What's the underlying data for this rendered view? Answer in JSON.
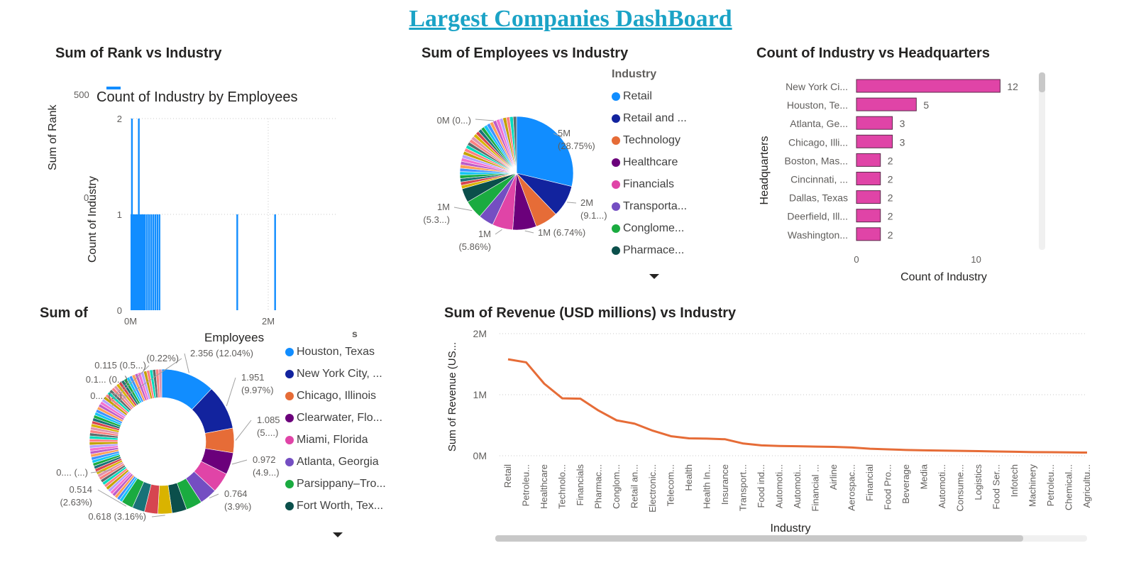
{
  "page_title": "Largest Companies DashBoard",
  "panels": {
    "rank": {
      "title": "Sum of Rank vs Industry",
      "ylabel": "Sum of Rank",
      "ticks": [
        "500",
        "0"
      ]
    },
    "popup": {
      "title": "Count of Industry by Employees",
      "ylabel": "Count of Industry",
      "xlabel": "Employees"
    },
    "pie": {
      "title": "Sum of Employees vs Industry",
      "legend_title": "Industry"
    },
    "bar": {
      "title": "Count of Industry vs Headquarters"
    },
    "donut": {
      "title_visible": "Sum of R",
      "legend_header_fragment": "s"
    },
    "line": {
      "title": "Sum of Revenue (USD millions) vs Industry"
    }
  },
  "chart_data": [
    {
      "type": "bar",
      "name": "count_by_employees",
      "title": "Count of Industry by Employees",
      "xlabel": "Employees",
      "ylabel": "Count of Industry",
      "x_ticks": [
        "0M",
        "2M"
      ],
      "y_ticks": [
        "0",
        "1",
        "2"
      ],
      "ylim": [
        0,
        2
      ],
      "xlim": [
        0,
        3000000
      ],
      "x": [
        20000,
        120000,
        40000,
        70000,
        95000,
        150000,
        180000,
        210000,
        240000,
        270000,
        300000,
        330000,
        360000,
        390000,
        420000,
        1550000,
        2100000
      ],
      "values": [
        2,
        2,
        1,
        1,
        1,
        1,
        1,
        1,
        1,
        1,
        1,
        1,
        1,
        1,
        1,
        1,
        1
      ],
      "color": "#118dff"
    },
    {
      "type": "pie",
      "name": "employees_by_industry",
      "title": "Sum of Employees vs Industry",
      "legend": [
        "Retail",
        "Retail and ...",
        "Technology",
        "Healthcare",
        "Financials",
        "Transporta...",
        "Conglome...",
        "Pharmace..."
      ],
      "legend_colors": [
        "#118dff",
        "#12239e",
        "#e66c37",
        "#6b007b",
        "#e044a7",
        "#744ec2",
        "#1aab40",
        "#0b4f4b"
      ],
      "slices": [
        {
          "label": "5M",
          "pct_label": "(28.75%)",
          "value": 28.75
        },
        {
          "label": "2M",
          "pct_label": "(9.1...)",
          "value": 9.1
        },
        {
          "label": "",
          "pct_label": "",
          "value": 6.5
        },
        {
          "label": "1M (6.74%)",
          "pct_label": "",
          "value": 6.74
        },
        {
          "label": "1M",
          "pct_label": "(5.86%)",
          "value": 5.86
        },
        {
          "label": "",
          "pct_label": "",
          "value": 4.3
        },
        {
          "label": "1M",
          "pct_label": "(5.3...)",
          "value": 5.3
        },
        {
          "label": "",
          "pct_label": "",
          "value": 4.0
        }
      ],
      "other_label": "0M (0...)"
    },
    {
      "type": "bar",
      "name": "count_by_headquarters",
      "title": "Count of Industry vs Headquarters",
      "orientation": "horizontal",
      "xlabel": "Count of Industry",
      "ylabel": "Headquarters",
      "categories": [
        "New York Ci...",
        "Houston, Te...",
        "Atlanta, Ge...",
        "Chicago, Illi...",
        "Boston, Mas...",
        "Cincinnati, ...",
        "Dallas, Texas",
        "Deerfield, Ill...",
        "Washington..."
      ],
      "values": [
        12,
        5,
        3,
        3,
        2,
        2,
        2,
        2,
        2
      ],
      "x_ticks": [
        "0",
        "10"
      ],
      "xlim": [
        0,
        12
      ],
      "color": "#e044a7"
    },
    {
      "type": "pie",
      "name": "donut_by_headquarters",
      "legend": [
        "Houston, Texas",
        "New York City, ...",
        "Chicago, Illinois",
        "Clearwater, Flo...",
        "Miami, Florida",
        "Atlanta, Georgia",
        "Parsippany–Tro...",
        "Fort Worth, Tex..."
      ],
      "legend_colors": [
        "#118dff",
        "#12239e",
        "#e66c37",
        "#6b007b",
        "#e044a7",
        "#744ec2",
        "#1aab40",
        "#0b4f4b"
      ],
      "slices": [
        {
          "label": "2.356 (12.04%)",
          "value": 12.04
        },
        {
          "label": "1.951 (9.97%)",
          "value": 9.97
        },
        {
          "label": "1.085 (5....)",
          "value": 5.5
        },
        {
          "label": "0.972 (4.9...)",
          "value": 4.9
        },
        {
          "label": "",
          "value": 4.5
        },
        {
          "label": "0.764 (3.9%)",
          "value": 3.9
        },
        {
          "label": "",
          "value": 3.6
        },
        {
          "label": "",
          "value": 3.3
        },
        {
          "label": "0.618 (3.16%)",
          "value": 3.16
        },
        {
          "label": "",
          "value": 3.0
        },
        {
          "label": "",
          "value": 2.8
        },
        {
          "label": "0.514 (2.63%)",
          "value": 2.63
        }
      ],
      "other_labels": [
        "0.... (...)",
        "0.... (...)",
        "0.1... (0...)",
        "0.115 (0.5...)",
        "(0.22%)"
      ]
    },
    {
      "type": "line",
      "name": "revenue_by_industry",
      "title": "Sum of Revenue (USD millions) vs Industry",
      "xlabel": "Industry",
      "ylabel": "Sum of Revenue (US...",
      "y_ticks": [
        "2M",
        "1M",
        "0M"
      ],
      "ylim": [
        0,
        2000000
      ],
      "categories": [
        "Retail",
        "Petroleu...",
        "Healthcare",
        "Technolo...",
        "Financials",
        "Pharmac...",
        "Conglom...",
        "Retail an...",
        "Electronic...",
        "Telecom...",
        "Health",
        "Health In...",
        "Insurance",
        "Transport...",
        "Food ind...",
        "Automoti...",
        "Automoti...",
        "Financial ...",
        "Airline",
        "Aerospac...",
        "Financial",
        "Food Pro...",
        "Beverage",
        "Media",
        "Automoti...",
        "Consume...",
        "Logistics",
        "Food Ser...",
        "Infotech",
        "Machinery",
        "Petroleu...",
        "Chemical...",
        "Agricultu..."
      ],
      "values": [
        1580000,
        1530000,
        1180000,
        940000,
        935000,
        740000,
        580000,
        525000,
        410000,
        320000,
        285000,
        280000,
        270000,
        200000,
        170000,
        160000,
        155000,
        150000,
        145000,
        135000,
        115000,
        105000,
        95000,
        88000,
        85000,
        80000,
        75000,
        70000,
        65000,
        60000,
        58000,
        55000,
        52000
      ],
      "color": "#e66c37"
    }
  ]
}
